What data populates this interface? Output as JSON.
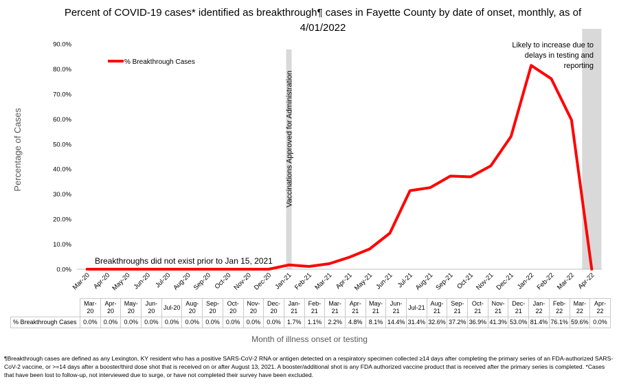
{
  "chart_data": {
    "type": "line",
    "title": "Percent of COVID-19 cases* identified as breakthrough¶ cases in Fayette County by date of onset, monthly, as of 4/01/2022",
    "xlabel": "Month of illness onset or testing",
    "ylabel": "Percentage of Cases",
    "ylim": [
      0,
      90
    ],
    "yticks": [
      "0.0%",
      "10.0%",
      "20.0%",
      "30.0%",
      "40.0%",
      "50.0%",
      "60.0%",
      "70.0%",
      "80.0%",
      "90.0%"
    ],
    "grid": false,
    "legend_position": "top-left",
    "categories": [
      "Mar-20",
      "Apr-20",
      "May-20",
      "Jun-20",
      "Jul-20",
      "Aug-20",
      "Sep-20",
      "Oct-20",
      "Nov-20",
      "Dec-20",
      "Jan-21",
      "Feb-21",
      "Mar-21",
      "Apr-21",
      "May-21",
      "Jun-21",
      "Jul-21",
      "Aug-21",
      "Sep-21",
      "Oct-21",
      "Nov-21",
      "Dec-21",
      "Jan-22",
      "Feb-22",
      "Mar-22",
      "Apr-22"
    ],
    "series": [
      {
        "name": "% Breakthrough Cases",
        "color": "#ff0000",
        "values": [
          0,
          0,
          0,
          0,
          0,
          0,
          0,
          0,
          0,
          0,
          1.7,
          1.1,
          2.2,
          4.8,
          8.1,
          14.4,
          31.4,
          32.6,
          37.2,
          36.9,
          41.3,
          53.0,
          81.4,
          76.1,
          59.6,
          0.0
        ],
        "labels": [
          "0.0%",
          "0.0%",
          "0.0%",
          "0.0%",
          "0.0%",
          "0.0%",
          "0.0%",
          "0.0%",
          "0.0%",
          "0.0%",
          "1.7%",
          "1.1%",
          "2.2%",
          "4.8%",
          "8.1%",
          "14.4%",
          "31.4%",
          "32.6%",
          "37.2%",
          "36.9%",
          "41.3%",
          "53.0%",
          "81.4%",
          "76.1%",
          "59.6%",
          "0.0%"
        ]
      }
    ],
    "table_headers": [
      [
        "Mar-",
        "20"
      ],
      [
        "Apr-",
        "20"
      ],
      [
        "May-",
        "20"
      ],
      [
        "Jun-",
        "20"
      ],
      [
        "Jul-20",
        ""
      ],
      [
        "Aug-",
        "20"
      ],
      [
        "Sep-",
        "20"
      ],
      [
        "Oct-",
        "20"
      ],
      [
        "Nov-",
        "20"
      ],
      [
        "Dec-",
        "20"
      ],
      [
        "Jan-",
        "21"
      ],
      [
        "Feb-",
        "21"
      ],
      [
        "Mar-",
        "21"
      ],
      [
        "Apr-",
        "21"
      ],
      [
        "May-",
        "21"
      ],
      [
        "Jun-",
        "21"
      ],
      [
        "Jul-21",
        ""
      ],
      [
        "Aug-",
        "21"
      ],
      [
        "Sep-",
        "21"
      ],
      [
        "Oct-",
        "21"
      ],
      [
        "Nov-",
        "21"
      ],
      [
        "Dec-",
        "21"
      ],
      [
        "Jan-",
        "22"
      ],
      [
        "Feb-",
        "22"
      ],
      [
        "Mar-",
        "22"
      ],
      [
        "Apr-",
        "22"
      ]
    ],
    "annotations": {
      "vaccination_label": "Vaccinations Approved for Administration",
      "vaccination_at": "Jan-21",
      "likely_increase_lines": [
        "Likely to increase due to",
        "delays in testing and",
        "reporting"
      ],
      "likely_increase_at": "Apr-22",
      "no_breakthroughs": "Breakthroughs did not exist prior to Jan 15, 2021"
    },
    "bands_color": "#d9d9d9"
  },
  "footnote": "¶Breakthrough cases are defined as any Lexington, KY resident who has a positive SARS-CoV-2 RNA or antigen detected on a respiratory specimen collected ≥14 days after completing the primary series of an FDA-authorized SARS-CoV-2 vaccine, or >=14 days after a booster/third dose shot that is received on or after August 13, 2021.  A booster/additional shot is any FDA authorized vaccine product that is received after the primary series is completed. *Cases that have been lost to follow-up, not interviewed due to surge, or have not completed their survey have been excluded."
}
